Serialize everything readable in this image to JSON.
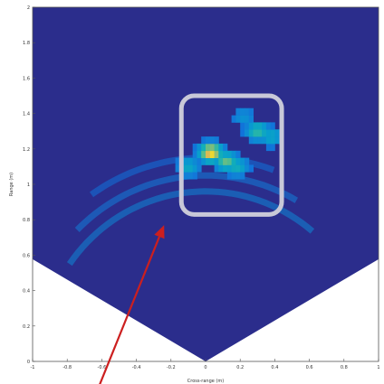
{
  "chart_data": {
    "type": "heatmap",
    "title": "",
    "xlabel": "Cross-range (m)",
    "ylabel": "Range (m)",
    "xlim": [
      -1,
      1
    ],
    "ylim": [
      0,
      2
    ],
    "x_ticks": [
      -1,
      -0.8,
      -0.6,
      -0.4,
      -0.2,
      0,
      0.2,
      0.4,
      0.6,
      0.8,
      1
    ],
    "x_tick_labels": [
      "-1",
      "-0.8",
      "-0.6",
      "-0.4",
      "-0.2",
      "0",
      "0.2",
      "0.4",
      "0.6",
      "0.8",
      "1"
    ],
    "y_ticks": [
      0,
      0.2,
      0.4,
      0.6,
      0.8,
      1,
      1.2,
      1.4,
      1.6,
      1.8,
      2
    ],
    "y_tick_labels": [
      "0",
      "0.2",
      "0.4",
      "0.6",
      "0.8",
      "1",
      "1.2",
      "1.4",
      "1.6",
      "1.8",
      "2"
    ],
    "grid": false,
    "colormap": "parula",
    "field_of_view_half_angle_deg": 60,
    "background_color": "#2b2d8c",
    "range_arcs": [
      {
        "radius": 0.96,
        "angle_min_deg": -55,
        "angle_max_deg": 40,
        "intensity": 0.35
      },
      {
        "radius": 1.05,
        "angle_min_deg": -45,
        "angle_max_deg": 30,
        "intensity": 0.3
      },
      {
        "radius": 1.15,
        "angle_min_deg": -35,
        "angle_max_deg": 20,
        "intensity": 0.25
      }
    ],
    "hotspots": [
      {
        "x": 0.03,
        "y": 1.18,
        "intensity": 1.0
      },
      {
        "x": 0.12,
        "y": 1.13,
        "intensity": 0.7
      },
      {
        "x": 0.18,
        "y": 1.1,
        "intensity": 0.5
      },
      {
        "x": 0.3,
        "y": 1.3,
        "intensity": 0.6
      },
      {
        "x": 0.38,
        "y": 1.27,
        "intensity": 0.45
      },
      {
        "x": 0.22,
        "y": 1.38,
        "intensity": 0.3
      },
      {
        "x": -0.1,
        "y": 1.1,
        "intensity": 0.45
      }
    ],
    "annotation_box": {
      "x_min": -0.14,
      "x_max": 0.44,
      "y_min": 0.83,
      "y_max": 1.5,
      "color": "#c8c8d8"
    },
    "annotation_arrow": {
      "from_x": -0.62,
      "from_y": -0.15,
      "to_x": -0.24,
      "to_y": 0.77,
      "color": "#cc1f1f"
    }
  }
}
